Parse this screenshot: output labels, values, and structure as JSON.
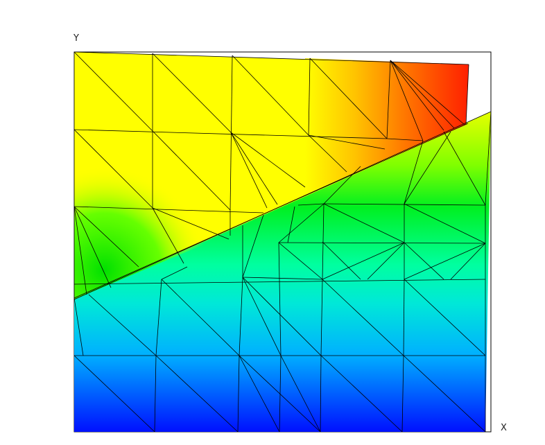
{
  "axes": {
    "y_label": "Y",
    "x_label": "X"
  },
  "colormap": [
    "#0000ff",
    "#00c8ff",
    "#00ffc0",
    "#00ff00",
    "#ffff00",
    "#ff0000"
  ],
  "mesh_line_color": "#000000"
}
